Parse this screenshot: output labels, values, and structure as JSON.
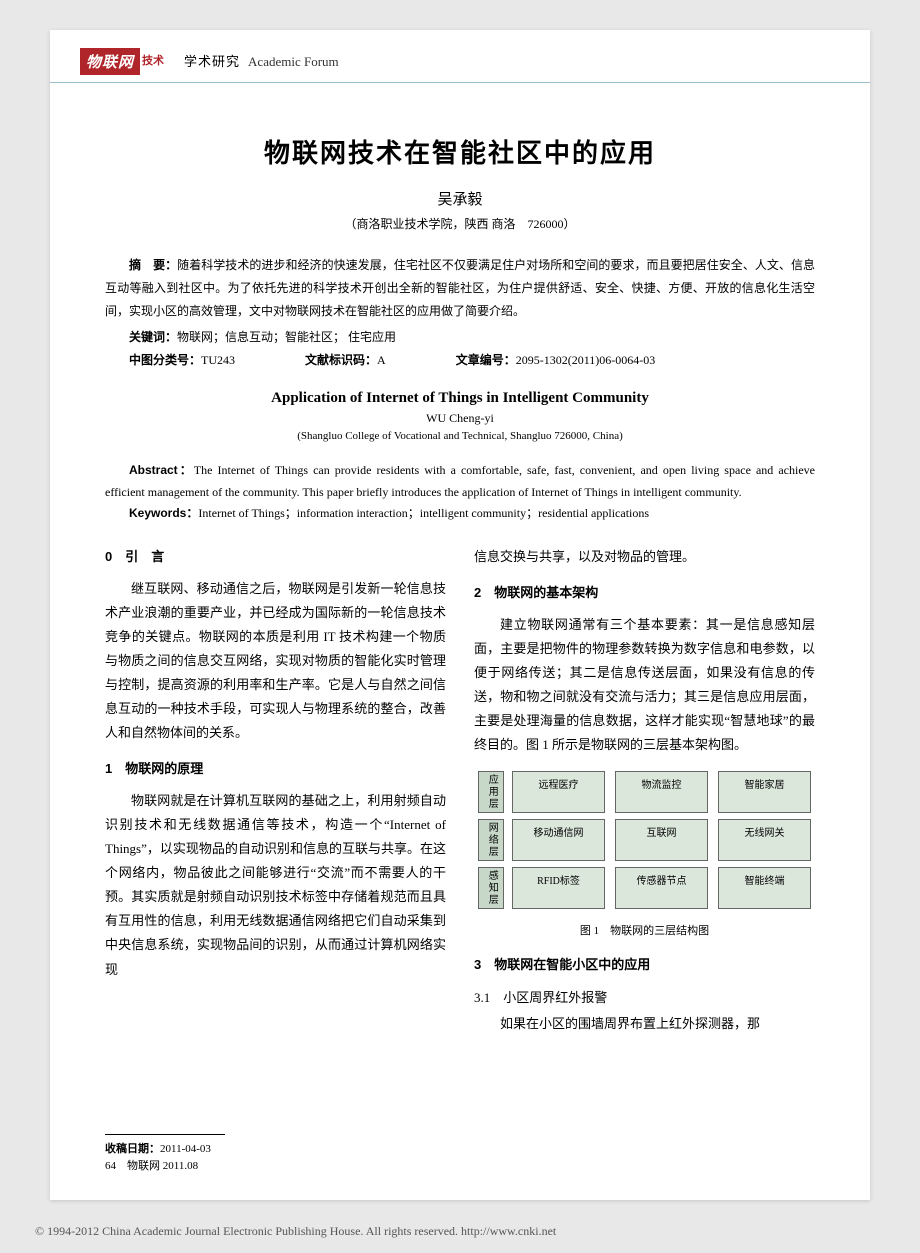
{
  "header": {
    "logo_text": "物联网",
    "logo_suffix": "技术",
    "section_cn": "学术研究",
    "section_en": "Academic Forum"
  },
  "title_cn": "物联网技术在智能社区中的应用",
  "author_cn": "吴承毅",
  "affil_cn": "（商洛职业技术学院，陕西 商洛　726000）",
  "abstract_cn_label": "摘　要：",
  "abstract_cn": "随着科学技术的进步和经济的快速发展，住宅社区不仅要满足住户对场所和空间的要求，而且要把居住安全、人文、信息互动等融入到社区中。为了依托先进的科学技术开创出全新的智能社区，为住户提供舒适、安全、快捷、方便、开放的信息化生活空间，实现小区的高效管理，文中对物联网技术在智能社区的应用做了简要介绍。",
  "keywords_cn_label": "关键词：",
  "keywords_cn": "物联网；信息互动；智能社区；  住宅应用",
  "class_no_label": "中图分类号：",
  "class_no": "TU243",
  "doc_code_label": "文献标识码：",
  "doc_code": "A",
  "article_id_label": "文章编号：",
  "article_id": "2095-1302(2011)06-0064-03",
  "title_en": "Application of Internet of Things in Intelligent Community",
  "author_en": "WU Cheng-yi",
  "affil_en": "(Shangluo College of Vocational and Technical, Shangluo 726000, China)",
  "abstract_en_label": "Abstract：",
  "abstract_en": "The Internet of Things can provide residents with a comfortable, safe, fast, convenient, and open living space and achieve efficient management of the community. This paper briefly introduces the application of Internet of Things in intelligent community.",
  "keywords_en_label": "Keywords：",
  "keywords_en": "Internet of Things；information interaction；intelligent community；residential applications",
  "body": {
    "s0_heading": "0　引　言",
    "s0_p1": "继互联网、移动通信之后，物联网是引发新一轮信息技术产业浪潮的重要产业，并已经成为国际新的一轮信息技术竞争的关键点。物联网的本质是利用 IT 技术构建一个物质与物质之间的信息交互网络，实现对物质的智能化实时管理与控制，提高资源的利用率和生产率。它是人与自然之间信息互动的一种技术手段，可实现人与物理系统的整合，改善人和自然物体间的关系。",
    "s1_heading": "1　物联网的原理",
    "s1_p1": "物联网就是在计算机互联网的基础之上，利用射频自动识别技术和无线数据通信等技术，构造一个“Internet of Things”，以实现物品的自动识别和信息的互联与共享。在这个网络内，物品彼此之间能够进行“交流”而不需要人的干预。其实质就是射频自动识别技术标签中存储着规范而且具有互用性的信息，利用无线数据通信网络把它们自动采集到中央信息系统，实现物品间的识别，从而通过计算机网络实现",
    "s1_p1b": "信息交换与共享，以及对物品的管理。",
    "s2_heading": "2　物联网的基本架构",
    "s2_p1": "建立物联网通常有三个基本要素：其一是信息感知层面，主要是把物件的物理参数转换为数字信息和电参数，以便于网络传送；其二是信息传送层面，如果没有信息的传送，物和物之间就没有交流与活力；其三是信息应用层面，主要是处理海量的信息数据，这样才能实现“智慧地球”的最终目的。图 1 所示是物联网的三层基本架构图。",
    "s3_heading": "3　物联网在智能小区中的应用",
    "s3_1_heading": "3.1　小区周界红外报警",
    "s3_1_p1": "如果在小区的围墙周界布置上红外探测器，那"
  },
  "figure1": {
    "layers": [
      {
        "label": "应用层",
        "items": [
          "远程医疗",
          "物流监控",
          "智能家居"
        ]
      },
      {
        "label": "网络层",
        "items": [
          "移动通信网",
          "互联网",
          "无线网关"
        ]
      },
      {
        "label": "感知层",
        "items": [
          "RFID标签",
          "传感器节点",
          "智能终端"
        ]
      }
    ],
    "caption": "图 1　物联网的三层结构图",
    "colors": {
      "layer_bg": "#c7d8c8",
      "item_bg": "#dce7dc",
      "border": "#666666"
    }
  },
  "footer": {
    "recv_label": "收稿日期：",
    "recv_date": "2011-04-03",
    "page_info": "64　物联网 2011.08"
  },
  "copyright": "© 1994-2012 China Academic Journal Electronic Publishing House. All rights reserved.    http://www.cnki.net"
}
